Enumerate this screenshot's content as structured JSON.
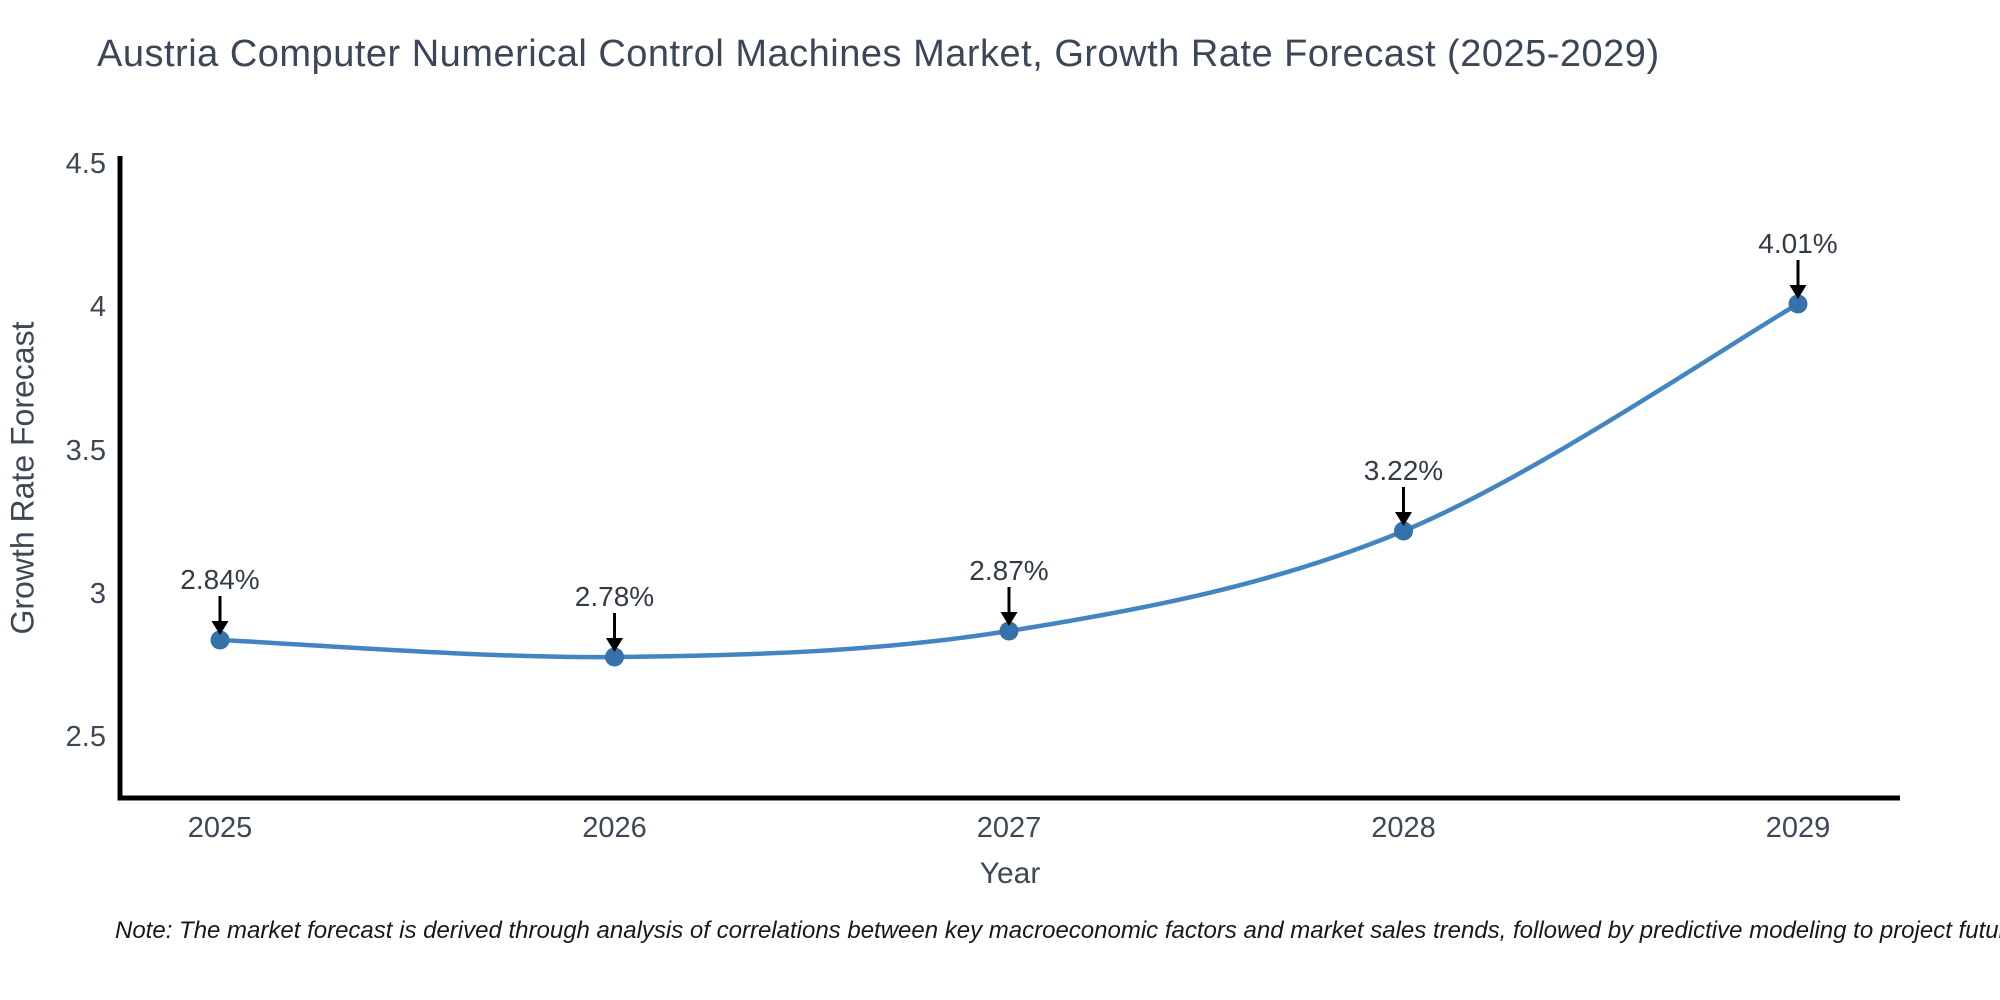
{
  "note": {
    "text": "Note: The market forecast is derived through analysis of correlations between key macroeconomic factors and market sales trends, followed by predictive modeling to project future sales"
  },
  "chart_data": {
    "type": "line",
    "title": "Austria Computer Numerical Control Machines Market, Growth Rate Forecast (2025-2029)",
    "xlabel": "Year",
    "ylabel": "Growth Rate Forecast",
    "categories": [
      "2025",
      "2026",
      "2027",
      "2028",
      "2029"
    ],
    "series": [
      {
        "name": "Growth Rate Forecast",
        "values": [
          2.84,
          2.78,
          2.87,
          3.22,
          4.01
        ]
      }
    ],
    "point_labels": [
      "2.84%",
      "2.78%",
      "2.87%",
      "3.22%",
      "4.01%"
    ],
    "yticks": {
      "labels": [
        "2.5",
        "3",
        "3.5",
        "4",
        "4.5"
      ],
      "values": [
        2.5,
        3,
        3.5,
        4,
        4.5
      ]
    },
    "ylim": [
      2.29,
      4.53
    ],
    "grid": false,
    "legend": "none",
    "line_style": "smooth-spline",
    "marker_style": "circle",
    "annotation_style": "value-label-with-down-arrow",
    "colors": {
      "line": "#4285c1",
      "marker": "#3571ab",
      "arrow": "#000000",
      "axis_spine": "#000000",
      "axis_text": "#3d4856",
      "annotation_text": "#333b47",
      "title_text": "#3b4659",
      "note_text": "#16181c",
      "background": "#ffffff"
    }
  }
}
